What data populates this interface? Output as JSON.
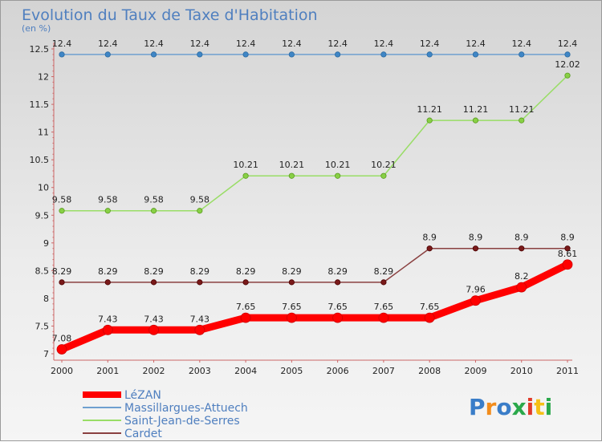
{
  "chart_data": {
    "type": "line",
    "title": "Evolution du Taux de Taxe d'Habitation",
    "unit_label": "(en %)",
    "xlabel": "",
    "ylabel": "",
    "x": [
      "2000",
      "2001",
      "2002",
      "2003",
      "2004",
      "2005",
      "2006",
      "2007",
      "2008",
      "2009",
      "2010",
      "2011"
    ],
    "ylim": [
      7,
      12.5
    ],
    "yticks": [
      "7",
      "7.5",
      "8",
      "8.5",
      "9",
      "9.5",
      "10",
      "10.5",
      "11",
      "11.5",
      "12",
      "12.5"
    ],
    "grid": false,
    "legend_position": "bottom-left",
    "series": [
      {
        "name": "LéZAN",
        "color": "#ff0000",
        "values": [
          7.08,
          7.43,
          7.43,
          7.43,
          7.65,
          7.65,
          7.65,
          7.65,
          7.65,
          7.96,
          8.2,
          8.61
        ],
        "labels": [
          "7.08",
          "7.43",
          "7.43",
          "7.43",
          "7.65",
          "7.65",
          "7.65",
          "7.65",
          "7.65",
          "7.96",
          "8.2",
          "8.61"
        ]
      },
      {
        "name": "Massillargues-Attuech",
        "color": "#6fa0d0",
        "values": [
          12.4,
          12.4,
          12.4,
          12.4,
          12.4,
          12.4,
          12.4,
          12.4,
          12.4,
          12.4,
          12.4,
          12.4
        ],
        "labels": [
          "12.4",
          "12.4",
          "12.4",
          "12.4",
          "12.4",
          "12.4",
          "12.4",
          "12.4",
          "12.4",
          "12.4",
          "12.4",
          "12.4"
        ]
      },
      {
        "name": "Saint-Jean-de-Serres",
        "color": "#99dd66",
        "values": [
          9.58,
          9.58,
          9.58,
          9.58,
          10.21,
          10.21,
          10.21,
          10.21,
          11.21,
          11.21,
          11.21,
          12.02
        ],
        "labels": [
          "9.58",
          "9.58",
          "9.58",
          "9.58",
          "10.21",
          "10.21",
          "10.21",
          "10.21",
          "11.21",
          "11.21",
          "11.21",
          "12.02"
        ]
      },
      {
        "name": "Cardet",
        "color": "#8a4040",
        "values": [
          8.29,
          8.29,
          8.29,
          8.29,
          8.29,
          8.29,
          8.29,
          8.29,
          8.9,
          8.9,
          8.9,
          8.9
        ],
        "labels": [
          "8.29",
          "8.29",
          "8.29",
          "8.29",
          "8.29",
          "8.29",
          "8.29",
          "8.29",
          "8.9",
          "8.9",
          "8.9",
          "8.9"
        ]
      }
    ]
  },
  "logo": {
    "text": "Proxiti"
  }
}
